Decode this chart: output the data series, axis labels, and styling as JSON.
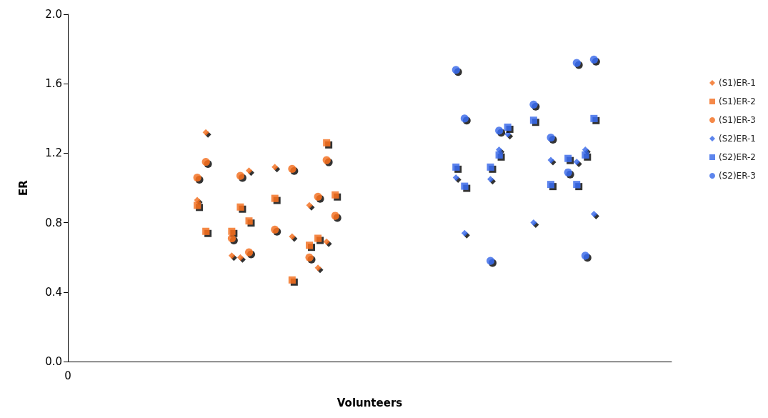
{
  "chart_data": {
    "type": "scatter",
    "xlabel": "Volunteers",
    "ylabel": "ER",
    "categories": [
      "0",
      null,
      null,
      null,
      null,
      null,
      null,
      null,
      null,
      null,
      null,
      null,
      null,
      null,
      null,
      null,
      null,
      null,
      null,
      null,
      null,
      null,
      null,
      null,
      null,
      null,
      null,
      null,
      null,
      null,
      null,
      null,
      null,
      null,
      null,
      null,
      null,
      null,
      null,
      null,
      null,
      null,
      null,
      null,
      null,
      null,
      null,
      null,
      null,
      null,
      null,
      null,
      null,
      null,
      null,
      null,
      null,
      null,
      null,
      null,
      null,
      null,
      null,
      null,
      null,
      null,
      null,
      null,
      null,
      null,
      null
    ],
    "series": [
      {
        "name": "(S1)ER-1",
        "color": "#f26c1c",
        "marker": "diamond",
        "values": [
          null,
          null,
          null,
          null,
          null,
          null,
          null,
          null,
          null,
          null,
          null,
          null,
          null,
          null,
          null,
          0.93,
          1.32,
          null,
          null,
          0.61,
          0.6,
          1.1,
          null,
          null,
          1.12,
          null,
          0.72,
          null,
          0.9,
          0.54,
          0.69,
          null,
          null,
          null,
          null,
          null,
          null,
          null,
          null,
          null,
          null,
          null,
          null,
          null,
          null,
          null,
          null,
          null,
          null,
          null,
          null,
          null,
          null,
          null,
          null,
          null,
          null,
          null,
          null,
          null,
          null,
          null,
          null,
          null,
          null,
          null,
          null,
          null,
          null,
          null,
          null
        ]
      },
      {
        "name": "(S1)ER-2",
        "color": "#f26c1c",
        "marker": "square",
        "values": [
          null,
          null,
          null,
          null,
          null,
          null,
          null,
          null,
          null,
          null,
          null,
          null,
          null,
          null,
          null,
          0.9,
          0.75,
          null,
          null,
          0.75,
          0.89,
          0.81,
          null,
          null,
          0.94,
          null,
          0.47,
          null,
          0.67,
          0.71,
          1.26,
          0.96,
          null,
          null,
          null,
          null,
          null,
          null,
          null,
          null,
          null,
          null,
          null,
          null,
          null,
          null,
          null,
          null,
          null,
          null,
          null,
          null,
          null,
          null,
          null,
          null,
          null,
          null,
          null,
          null,
          null,
          null,
          null,
          null,
          null,
          null,
          null,
          null,
          null,
          null,
          null
        ]
      },
      {
        "name": "(S1)ER-3",
        "color": "#f26c1c",
        "marker": "circle",
        "values": [
          null,
          null,
          null,
          null,
          null,
          null,
          null,
          null,
          null,
          null,
          null,
          null,
          null,
          null,
          null,
          1.06,
          1.15,
          null,
          null,
          0.71,
          1.07,
          0.63,
          null,
          null,
          0.76,
          null,
          1.11,
          null,
          0.6,
          0.95,
          1.16,
          0.84,
          null,
          null,
          null,
          null,
          null,
          null,
          null,
          null,
          null,
          null,
          null,
          null,
          null,
          null,
          null,
          null,
          null,
          null,
          null,
          null,
          null,
          null,
          null,
          null,
          null,
          null,
          null,
          null,
          null,
          null,
          null,
          null,
          null,
          null,
          null,
          null,
          null,
          null,
          null
        ]
      },
      {
        "name": "(S2)ER-1",
        "color": "#3466e8",
        "marker": "diamond",
        "values": [
          null,
          null,
          null,
          null,
          null,
          null,
          null,
          null,
          null,
          null,
          null,
          null,
          null,
          null,
          null,
          null,
          null,
          null,
          null,
          null,
          null,
          null,
          null,
          null,
          null,
          null,
          null,
          null,
          null,
          null,
          null,
          null,
          null,
          null,
          null,
          null,
          null,
          null,
          null,
          null,
          null,
          null,
          null,
          null,
          null,
          1.06,
          0.74,
          null,
          null,
          1.05,
          1.22,
          1.31,
          null,
          null,
          0.8,
          null,
          1.16,
          null,
          null,
          1.15,
          1.22,
          0.85,
          null,
          null,
          null,
          null,
          null,
          null,
          null,
          null,
          null
        ]
      },
      {
        "name": "(S2)ER-2",
        "color": "#3466e8",
        "marker": "square",
        "values": [
          null,
          null,
          null,
          null,
          null,
          null,
          null,
          null,
          null,
          null,
          null,
          null,
          null,
          null,
          null,
          null,
          null,
          null,
          null,
          null,
          null,
          null,
          null,
          null,
          null,
          null,
          null,
          null,
          null,
          null,
          null,
          null,
          null,
          null,
          null,
          null,
          null,
          null,
          null,
          null,
          null,
          null,
          null,
          null,
          null,
          1.12,
          1.01,
          null,
          null,
          1.12,
          1.19,
          1.35,
          null,
          null,
          1.39,
          null,
          1.02,
          null,
          1.17,
          1.02,
          1.19,
          1.4,
          null,
          null,
          null,
          null,
          null,
          null,
          null,
          null,
          null
        ]
      },
      {
        "name": "(S2)ER-3",
        "color": "#3466e8",
        "marker": "circle",
        "values": [
          null,
          null,
          null,
          null,
          null,
          null,
          null,
          null,
          null,
          null,
          null,
          null,
          null,
          null,
          null,
          null,
          null,
          null,
          null,
          null,
          null,
          null,
          null,
          null,
          null,
          null,
          null,
          null,
          null,
          null,
          null,
          null,
          null,
          null,
          null,
          null,
          null,
          null,
          null,
          null,
          null,
          null,
          null,
          null,
          null,
          1.68,
          1.4,
          null,
          null,
          0.58,
          1.33,
          null,
          null,
          null,
          1.48,
          null,
          1.29,
          null,
          1.09,
          1.72,
          0.61,
          1.74,
          null,
          null,
          null,
          null,
          null,
          null,
          null,
          null,
          null
        ]
      }
    ],
    "ylim": [
      0,
      2
    ],
    "yticks": [
      {
        "value": 0,
        "label": "0.0"
      },
      0.4,
      0.8,
      1.2,
      1.6,
      {
        "value": 2,
        "label": "2.0"
      }
    ],
    "grid": false,
    "legend": "right"
  }
}
